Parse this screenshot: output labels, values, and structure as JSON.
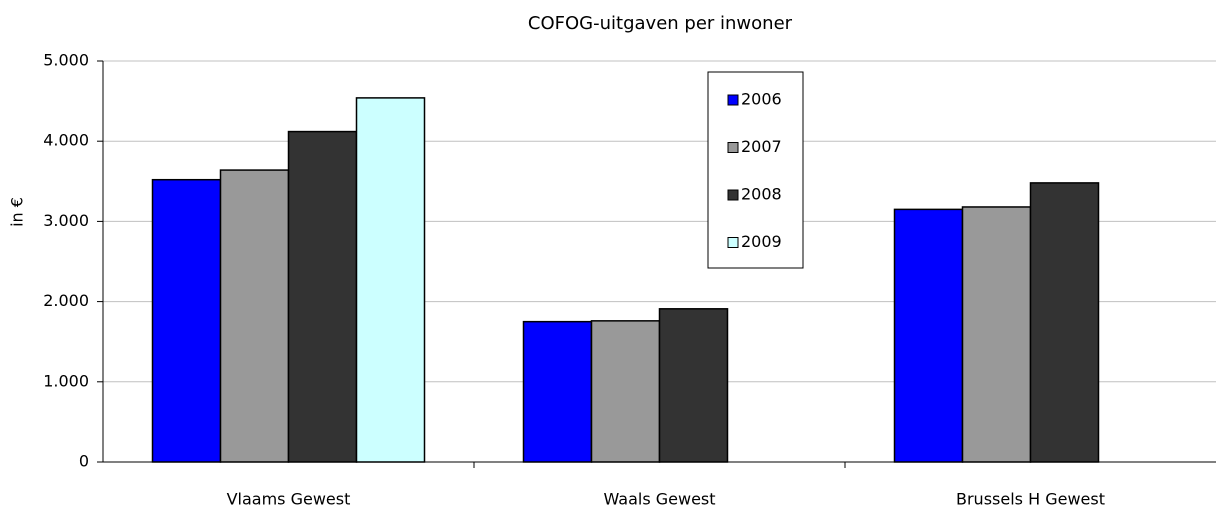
{
  "chart_data": {
    "type": "bar",
    "title": "COFOG-uitgaven per inwoner",
    "y_label": "in €",
    "categories": [
      "Vlaams Gewest",
      "Waals Gewest",
      "Brussels H Gewest"
    ],
    "series": [
      {
        "name": "2006",
        "color": "#0000ff",
        "values": [
          3520,
          1750,
          3150
        ]
      },
      {
        "name": "2007",
        "color": "#999999",
        "values": [
          3640,
          1760,
          3180
        ]
      },
      {
        "name": "2008",
        "color": "#333333",
        "values": [
          4120,
          1910,
          3480
        ]
      },
      {
        "name": "2009",
        "color": "#ccffff",
        "values": [
          4540,
          null,
          null
        ]
      }
    ],
    "ylim": [
      0,
      5000
    ],
    "yticks": [
      0,
      {
        "value": 1000,
        "label": "1.000"
      },
      {
        "value": 2000,
        "label": "2.000"
      },
      {
        "value": 3000,
        "label": "3.000"
      },
      {
        "value": 4000,
        "label": "4.000"
      },
      {
        "value": 5000,
        "label": "5.000"
      }
    ],
    "grid": true
  }
}
